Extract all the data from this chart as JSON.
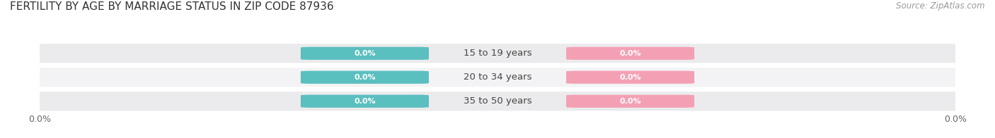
{
  "title": "FERTILITY BY AGE BY MARRIAGE STATUS IN ZIP CODE 87936",
  "source": "Source: ZipAtlas.com",
  "categories": [
    "15 to 19 years",
    "20 to 34 years",
    "35 to 50 years"
  ],
  "married_values": [
    0.0,
    0.0,
    0.0
  ],
  "unmarried_values": [
    0.0,
    0.0,
    0.0
  ],
  "married_color": "#5BBFBF",
  "unmarried_color": "#F4A0B4",
  "row_colors": [
    "#EBEBED",
    "#F3F3F5",
    "#EBEBED"
  ],
  "background_color": "#FFFFFF",
  "title_fontsize": 11,
  "source_fontsize": 8.5,
  "cat_fontsize": 9.5,
  "badge_fontsize": 8,
  "tick_fontsize": 9,
  "axis_label_color": "#666666",
  "title_color": "#333333",
  "source_color": "#999999",
  "cat_color": "#444444"
}
